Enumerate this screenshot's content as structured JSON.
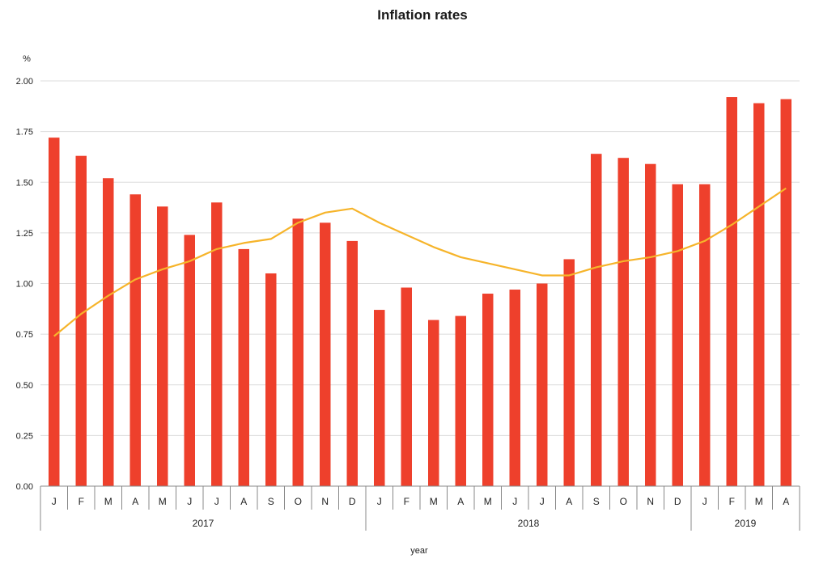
{
  "chart_data": {
    "type": "bar",
    "title": "Inflation rates",
    "ylabel": "%",
    "xlabel": "year",
    "ylim": [
      0,
      2.0
    ],
    "yticks": [
      "0.00",
      "0.25",
      "0.50",
      "0.75",
      "1.00",
      "1.25",
      "1.50",
      "1.75",
      "2.00"
    ],
    "categories": [
      "J",
      "F",
      "M",
      "A",
      "M",
      "J",
      "J",
      "A",
      "S",
      "O",
      "N",
      "D",
      "J",
      "F",
      "M",
      "A",
      "M",
      "J",
      "J",
      "A",
      "S",
      "O",
      "N",
      "D",
      "J",
      "F",
      "M",
      "A"
    ],
    "groups": [
      {
        "label": "2017",
        "count": 12
      },
      {
        "label": "2018",
        "count": 12
      },
      {
        "label": "2019",
        "count": 4
      }
    ],
    "series": [
      {
        "type": "bar",
        "color": "#ee402c",
        "values": [
          1.72,
          1.63,
          1.52,
          1.44,
          1.38,
          1.24,
          1.4,
          1.17,
          1.05,
          1.32,
          1.3,
          1.21,
          0.87,
          0.98,
          0.82,
          0.84,
          0.95,
          0.97,
          1.0,
          1.12,
          1.64,
          1.62,
          1.59,
          1.49,
          1.49,
          1.92,
          1.89,
          1.91
        ]
      },
      {
        "type": "line",
        "color": "#f6b42a",
        "values": [
          0.74,
          0.85,
          0.94,
          1.02,
          1.07,
          1.11,
          1.17,
          1.2,
          1.22,
          1.3,
          1.35,
          1.37,
          1.3,
          1.24,
          1.18,
          1.13,
          1.1,
          1.07,
          1.04,
          1.04,
          1.08,
          1.11,
          1.13,
          1.16,
          1.21,
          1.29,
          1.38,
          1.47
        ]
      }
    ],
    "grid": true,
    "legend": "none"
  }
}
